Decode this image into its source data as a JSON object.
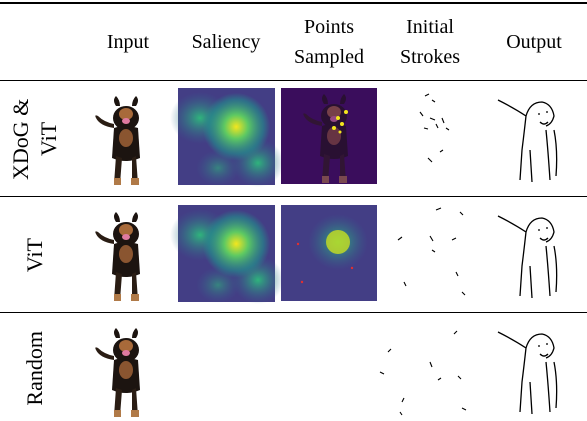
{
  "columns": [
    "Input",
    "Saliency",
    "Points Sampled",
    "Initial Strokes",
    "Output"
  ],
  "rows": [
    "XDoG & ViT",
    "ViT",
    "Random"
  ]
}
